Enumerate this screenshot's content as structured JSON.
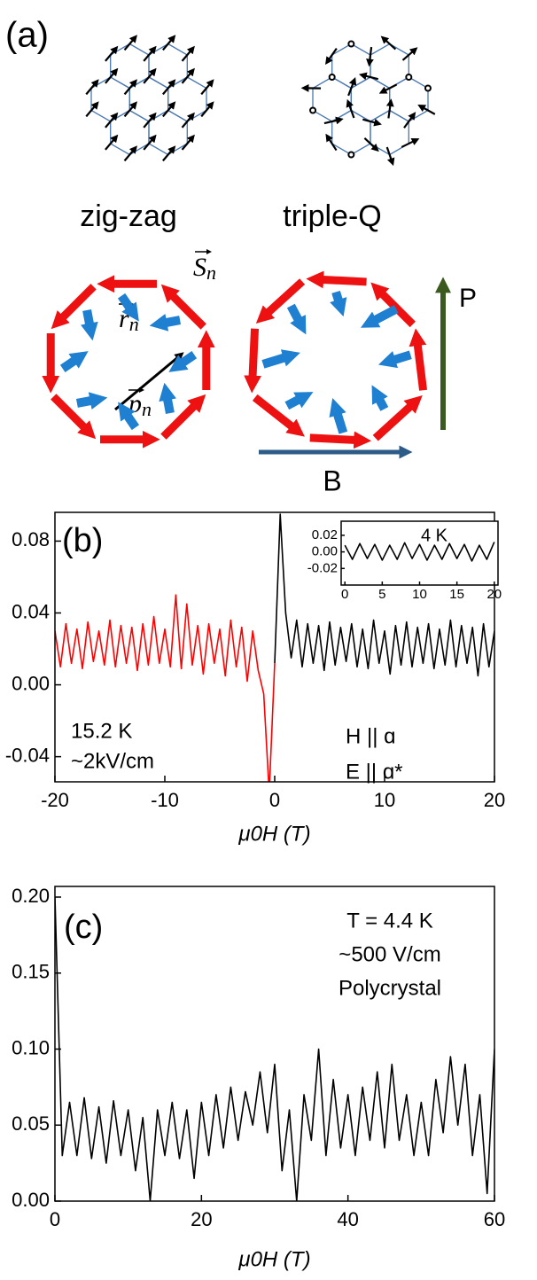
{
  "panel_a": {
    "label": "(a)",
    "left_caption": "zig-zag",
    "right_caption": "triple-Q",
    "spin_symbol": "S",
    "spin_sub": "n",
    "position_symbol": "r",
    "position_sub": "n",
    "polarization_symbol": "p",
    "polarization_sub": "n",
    "P_label": "P",
    "B_label": "B"
  },
  "chart_data": [
    {
      "type": "line",
      "label": "(b)",
      "x_label": "μ0H (T)",
      "annotations": [
        "15.2 K",
        "~2kV/cm",
        "H || ɑ",
        "E || ɑ*"
      ],
      "xlim": [
        -20,
        20
      ],
      "xticks": [
        -20,
        -10,
        0,
        10,
        20
      ],
      "ylim": [
        -0.054,
        0.096
      ],
      "yticks": [
        0.08,
        0.04,
        {
          "value": 0,
          "label": "0.00"
        },
        -0.04
      ],
      "series": [
        {
          "color": "#ff0000",
          "x": [
            -20,
            -19.5,
            -19,
            -18.5,
            -18,
            -17.5,
            -17,
            -16.5,
            -16,
            -15.5,
            -15,
            -14.5,
            -14,
            -13.5,
            -13,
            -12.5,
            -12,
            -11.5,
            -11,
            -10.5,
            -10,
            -9.5,
            -9,
            -8.5,
            -8,
            -7.5,
            -7,
            -6.5,
            -6,
            -5.5,
            -5,
            -4.5,
            -4,
            -3.5,
            -3,
            -2.5,
            -2,
            -1.5,
            -1,
            -0.5,
            0
          ],
          "values": [
            0.03,
            0.01,
            0.034,
            0.012,
            0.031,
            0.009,
            0.035,
            0.013,
            0.03,
            0.011,
            0.036,
            0.01,
            0.033,
            0.012,
            0.032,
            0.008,
            0.034,
            0.011,
            0.038,
            0.012,
            0.031,
            0.01,
            0.05,
            0.009,
            0.045,
            0.011,
            0.033,
            0.006,
            0.034,
            0.012,
            0.031,
            0.005,
            0.036,
            0.01,
            0.032,
            0.002,
            0.03,
            0.008,
            -0.005,
            -0.06,
            0.012
          ]
        },
        {
          "color": "#000000",
          "x": [
            0,
            0.5,
            1,
            1.5,
            2,
            2.5,
            3,
            3.5,
            4,
            4.5,
            5,
            5.5,
            6,
            6.5,
            7,
            7.5,
            8,
            8.5,
            9,
            9.5,
            10,
            10.5,
            11,
            11.5,
            12,
            12.5,
            13,
            13.5,
            14,
            14.5,
            15,
            15.5,
            16,
            16.5,
            17,
            17.5,
            18,
            18.5,
            19,
            19.5,
            20
          ],
          "values": [
            0.012,
            0.095,
            0.04,
            0.015,
            0.036,
            0.01,
            0.034,
            0.012,
            0.033,
            0.008,
            0.035,
            0.011,
            0.032,
            0.013,
            0.034,
            0.01,
            0.031,
            0.009,
            0.036,
            0.012,
            0.03,
            0.006,
            0.033,
            0.011,
            0.035,
            0.01,
            0.032,
            0.012,
            0.034,
            0.009,
            0.031,
            0.011,
            0.036,
            0.01,
            0.033,
            0.012,
            0.032,
            0.005,
            0.034,
            0.01,
            0.03
          ]
        }
      ]
    },
    {
      "type": "line",
      "title": "4 K",
      "xlim": [
        -0.5,
        20.5
      ],
      "xticks": [
        0,
        5,
        10,
        15,
        20
      ],
      "ylim": [
        -0.04,
        0.037
      ],
      "yticks": [
        0.02,
        {
          "value": 0,
          "label": "0.00"
        },
        -0.02
      ],
      "series": [
        {
          "color": "#000000",
          "x": [
            0,
            1,
            2,
            3,
            4,
            5,
            6,
            7,
            8,
            9,
            10,
            11,
            12,
            13,
            14,
            15,
            16,
            17,
            18,
            19,
            20
          ],
          "values": [
            0.008,
            -0.009,
            0.01,
            -0.008,
            0.009,
            -0.01,
            0.008,
            -0.009,
            0.011,
            -0.008,
            0.009,
            -0.01,
            0.008,
            -0.009,
            0.01,
            -0.008,
            0.009,
            -0.011,
            0.008,
            -0.009,
            0.012
          ]
        }
      ]
    },
    {
      "type": "line",
      "label": "(c)",
      "x_label": "μ0H (T)",
      "annotations": [
        "T = 4.4 K",
        "~500 V/cm",
        "Polycrystal"
      ],
      "xlim": [
        0,
        60
      ],
      "xticks": [
        0,
        20,
        40,
        60
      ],
      "ylim": [
        0,
        0.207
      ],
      "yticks": [
        {
          "value": 0.2,
          "label": "0.20"
        },
        0.15,
        {
          "value": 0.1,
          "label": "0.10"
        },
        0.05,
        {
          "value": 0,
          "label": "0.00"
        }
      ],
      "series": [
        {
          "color": "#000000",
          "x": [
            0,
            1,
            2,
            3,
            4,
            5,
            6,
            7,
            8,
            9,
            10,
            11,
            12,
            13,
            14,
            15,
            16,
            17,
            18,
            19,
            20,
            21,
            22,
            23,
            24,
            25,
            26,
            27,
            28,
            29,
            30,
            31,
            32,
            33,
            34,
            35,
            36,
            37,
            38,
            39,
            40,
            41,
            42,
            43,
            44,
            45,
            46,
            47,
            48,
            49,
            50,
            51,
            52,
            53,
            54,
            55,
            56,
            57,
            58,
            59,
            60
          ],
          "values": [
            0.2,
            0.03,
            0.065,
            0.03,
            0.068,
            0.028,
            0.062,
            0.025,
            0.066,
            0.03,
            0.06,
            0.02,
            0.055,
            0,
            0.06,
            0.03,
            0.065,
            0.028,
            0.06,
            0.015,
            0.065,
            0.03,
            0.07,
            0.035,
            0.075,
            0.04,
            0.072,
            0.05,
            0.085,
            0.045,
            0.09,
            0.02,
            0.06,
            0,
            0.07,
            0.04,
            0.1,
            0.03,
            0.08,
            0.035,
            0.07,
            0.03,
            0.075,
            0.04,
            0.085,
            0.035,
            0.09,
            0.04,
            0.07,
            0.03,
            0.065,
            0.03,
            0.08,
            0.045,
            0.095,
            0.05,
            0.09,
            0.03,
            0.07,
            0.005,
            0.1
          ]
        }
      ]
    }
  ]
}
